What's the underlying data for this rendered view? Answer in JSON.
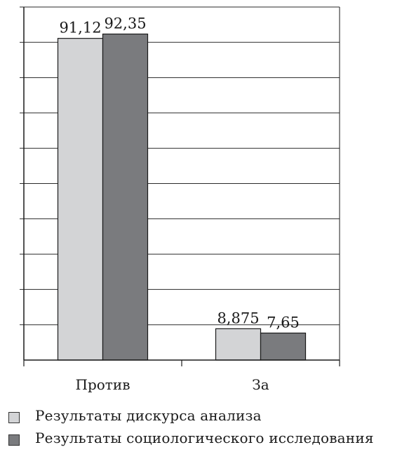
{
  "chart_data": {
    "type": "bar",
    "categories": [
      "Против",
      "За"
    ],
    "series": [
      {
        "name": "Результаты дискурса анализа",
        "values": [
          91.12,
          8.875
        ],
        "labels": [
          "91,12",
          "8,875"
        ],
        "color": "#d3d4d6"
      },
      {
        "name": "Результаты социологического исследования",
        "values": [
          92.35,
          7.65
        ],
        "labels": [
          "92,35",
          "7,65"
        ],
        "color": "#7a7b7e"
      }
    ],
    "ylim": [
      0,
      100
    ],
    "y_gridlines": [
      10,
      20,
      30,
      40,
      50,
      60,
      70,
      80,
      90,
      100
    ],
    "y_tick_labels_shown": false,
    "grid": true,
    "legend": "bottom-left"
  }
}
